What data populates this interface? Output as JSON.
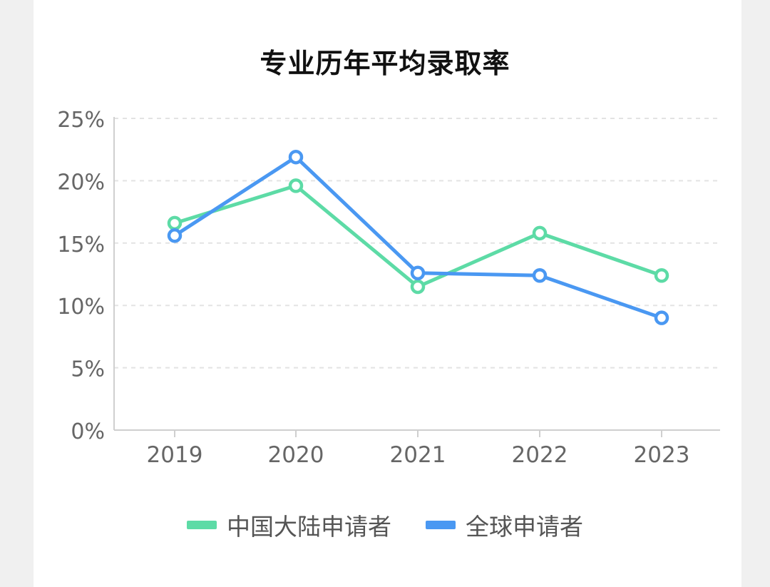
{
  "chart_data": {
    "type": "line",
    "title": "专业历年平均录取率",
    "categories": [
      "2019",
      "2020",
      "2021",
      "2022",
      "2023"
    ],
    "ylim": [
      0,
      25
    ],
    "yticks": [
      0,
      5,
      10,
      15,
      20,
      25
    ],
    "ytick_labels": [
      "0%",
      "5%",
      "10%",
      "15%",
      "20%",
      "25%"
    ],
    "grid": true,
    "legend_position": "bottom",
    "series": [
      {
        "name": "中国大陆申请者",
        "color": "#5ddba6",
        "values": [
          16.6,
          19.6,
          11.5,
          15.8,
          12.4
        ]
      },
      {
        "name": "全球申请者",
        "color": "#4a98f2",
        "values": [
          15.6,
          21.9,
          12.6,
          12.4,
          9.0
        ]
      }
    ]
  }
}
